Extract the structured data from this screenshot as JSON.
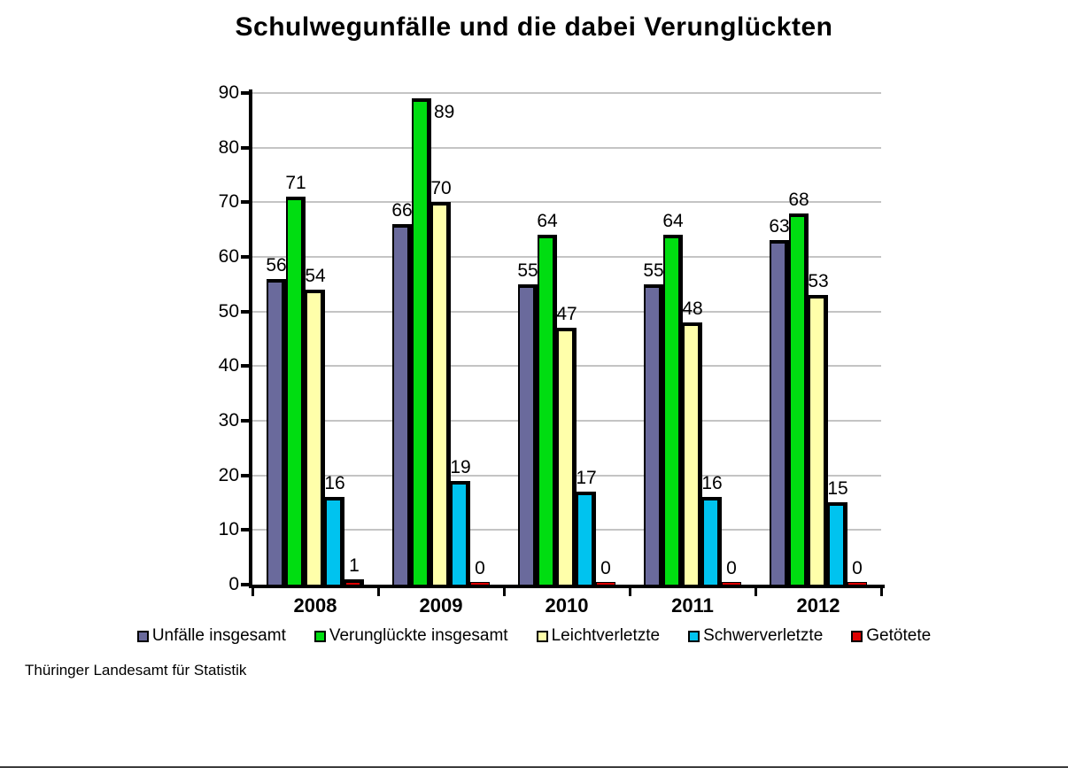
{
  "chart_data": {
    "type": "bar",
    "title": "Schulwegunfälle und die dabei Verunglückten",
    "categories": [
      "2008",
      "2009",
      "2010",
      "2011",
      "2012"
    ],
    "series": [
      {
        "name": "Unfälle insgesamt",
        "color": "#6a6a9c",
        "values": [
          56,
          66,
          55,
          55,
          63
        ]
      },
      {
        "name": "Verunglückte insgesamt",
        "color": "#00dd11",
        "values": [
          71,
          89,
          64,
          64,
          68
        ]
      },
      {
        "name": "Leichtverletzte",
        "color": "#ffffaa",
        "values": [
          54,
          70,
          47,
          48,
          53
        ]
      },
      {
        "name": "Schwerverletzte",
        "color": "#00c3ef",
        "values": [
          16,
          19,
          17,
          16,
          15
        ]
      },
      {
        "name": "Getötete",
        "color": "#dd0000",
        "values": [
          1,
          0,
          0,
          0,
          0
        ]
      }
    ],
    "ylim": [
      0,
      90
    ],
    "ytick_step": 10,
    "grid": true,
    "gridline_color": "#c4c4c4",
    "axis_color": "#000000",
    "legend_position": "bottom",
    "source": "Thüringer Landesamt für Statistik"
  }
}
